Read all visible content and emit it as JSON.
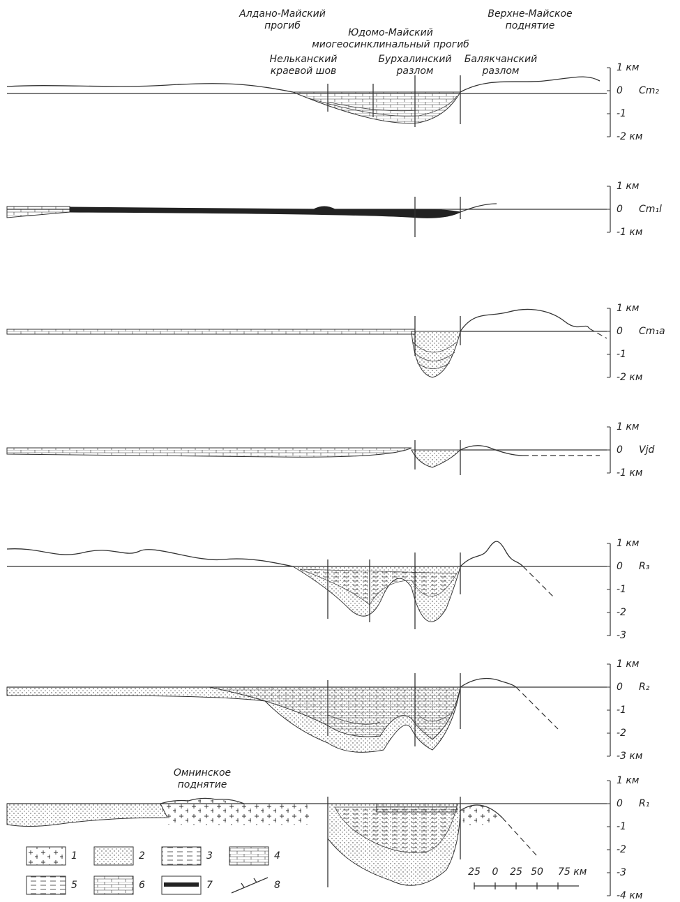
{
  "structures": [
    {
      "lines": [
        "Алдано-Майский",
        "прогиб"
      ]
    },
    {
      "lines": [
        "Юдомо-Майский",
        "миогеосинклинальный прогиб"
      ]
    },
    {
      "lines": [
        "Верхне-Майское",
        "поднятие"
      ]
    },
    {
      "lines": [
        "Нельканский",
        "краевой шов"
      ]
    },
    {
      "lines": [
        "Бурхалинский",
        "разлом"
      ]
    },
    {
      "lines": [
        "Балякчанский",
        "разлом"
      ]
    }
  ],
  "panels": [
    {
      "scale": [
        "1 км",
        "0",
        "-1",
        "-2 км"
      ],
      "formation": "Cm₂"
    },
    {
      "scale": [
        "1 км",
        "0",
        "-1 км"
      ],
      "formation": "Cm₁l"
    },
    {
      "scale": [
        "1 км",
        "0",
        "-1",
        "-2 км"
      ],
      "formation": "Cm₁a"
    },
    {
      "scale": [
        "1 км",
        "0",
        "-1 км"
      ],
      "formation": "Vjd"
    },
    {
      "scale": [
        "1 км",
        "0",
        "-1",
        "-2",
        "-3"
      ],
      "formation": "R₃"
    },
    {
      "scale": [
        "1 км",
        "0",
        "-1",
        "-2",
        "-3 км"
      ],
      "formation": "R₂"
    },
    {
      "scale": [
        "1 км",
        "0",
        "-1",
        "-2",
        "-3",
        "-4 км"
      ],
      "formation": "R₁",
      "annotation": [
        "Омнинское",
        "поднятие"
      ]
    }
  ],
  "legend": [
    "1",
    "2",
    "3",
    "4",
    "5",
    "6",
    "7",
    "8"
  ],
  "scale_bar": [
    "25",
    "0",
    "25",
    "50",
    "75 км"
  ]
}
